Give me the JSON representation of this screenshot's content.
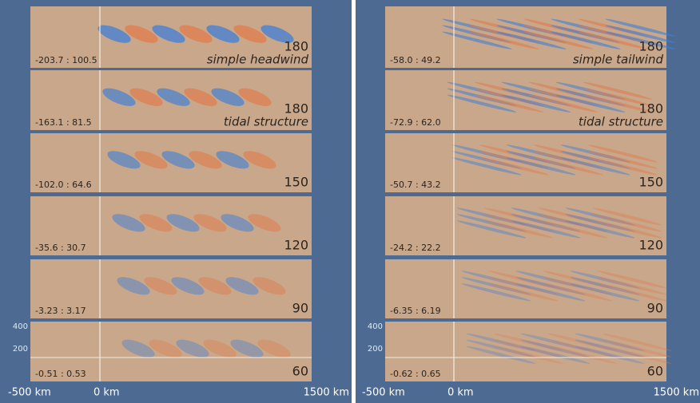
{
  "columns": [
    {
      "panels": [
        {
          "range": "-203.7 : 100.5",
          "number": "180",
          "caption": "simple headwind"
        },
        {
          "range": "-163.1 : 81.5",
          "number": "180",
          "caption": "tidal structure"
        },
        {
          "range": "-102.0 : 64.6",
          "number": "150"
        },
        {
          "range": "-35.6 : 30.7",
          "number": "120"
        },
        {
          "range": "-3.23 : 3.17",
          "number": "90"
        },
        {
          "range": "-0.51 : 0.53",
          "number": "60"
        }
      ],
      "yticks": [
        "400",
        "200"
      ],
      "xlabels": [
        "-500 km",
        "0 km",
        "1500 km"
      ]
    },
    {
      "panels": [
        {
          "range": "-58.0 : 49.2",
          "number": "180",
          "caption": "simple tailwind"
        },
        {
          "range": "-72.9 : 62.0",
          "number": "180",
          "caption": "tidal structure"
        },
        {
          "range": "-50.7 : 43.2",
          "number": "150"
        },
        {
          "range": "-24.2 : 22.2",
          "number": "120"
        },
        {
          "range": "-6.35 : 6.19",
          "number": "90"
        },
        {
          "range": "-0.62 : 0.65",
          "number": "60"
        }
      ],
      "yticks": [
        "400",
        "200"
      ],
      "xlabels": [
        "-500 km",
        "0 km",
        "1500 km"
      ]
    }
  ]
}
